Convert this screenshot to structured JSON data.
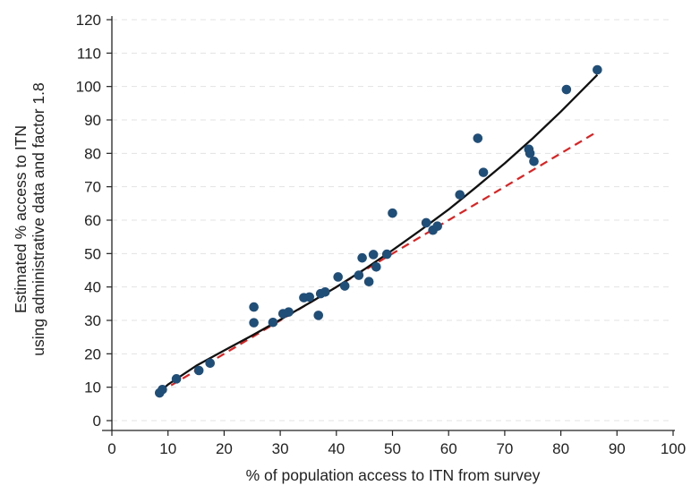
{
  "chart_data": {
    "type": "scatter",
    "title": "",
    "xlabel": "% of population access to ITN from survey",
    "ylabel_lines": [
      "Estimated % access to ITN",
      "using administrative data and factor 1.8"
    ],
    "xlim": [
      0,
      100
    ],
    "ylim": [
      0,
      120
    ],
    "xticks": [
      0,
      10,
      20,
      30,
      40,
      50,
      60,
      70,
      80,
      90,
      100
    ],
    "yticks": [
      0,
      10,
      20,
      30,
      40,
      50,
      60,
      70,
      80,
      90,
      100,
      110,
      120
    ],
    "grid": "horizontal dashed",
    "legend": "none",
    "colors": {
      "points": "#1f4e79",
      "fit_line": "#111111",
      "reference_line": "#e02020",
      "grid": "#e3e3e3",
      "axis": "#222222"
    },
    "points": [
      {
        "x": 8.5,
        "y": 8.3
      },
      {
        "x": 9.0,
        "y": 9.3
      },
      {
        "x": 11.5,
        "y": 12.5
      },
      {
        "x": 15.5,
        "y": 15.0
      },
      {
        "x": 17.5,
        "y": 17.2
      },
      {
        "x": 25.3,
        "y": 34.0
      },
      {
        "x": 25.3,
        "y": 29.3
      },
      {
        "x": 28.7,
        "y": 29.4
      },
      {
        "x": 30.5,
        "y": 32.0
      },
      {
        "x": 31.5,
        "y": 32.5
      },
      {
        "x": 34.2,
        "y": 36.8
      },
      {
        "x": 35.2,
        "y": 37.0
      },
      {
        "x": 36.8,
        "y": 31.5
      },
      {
        "x": 37.2,
        "y": 38.0
      },
      {
        "x": 38.0,
        "y": 38.5
      },
      {
        "x": 40.3,
        "y": 43.0
      },
      {
        "x": 41.5,
        "y": 40.3
      },
      {
        "x": 44.0,
        "y": 43.5
      },
      {
        "x": 44.6,
        "y": 48.7
      },
      {
        "x": 45.8,
        "y": 41.6
      },
      {
        "x": 46.6,
        "y": 49.7
      },
      {
        "x": 47.1,
        "y": 46.0
      },
      {
        "x": 49.0,
        "y": 49.8
      },
      {
        "x": 50.0,
        "y": 62.1
      },
      {
        "x": 56.0,
        "y": 59.2
      },
      {
        "x": 57.2,
        "y": 57.0
      },
      {
        "x": 58.0,
        "y": 58.2
      },
      {
        "x": 62.0,
        "y": 67.6
      },
      {
        "x": 65.2,
        "y": 84.5
      },
      {
        "x": 66.2,
        "y": 74.3
      },
      {
        "x": 74.3,
        "y": 81.2
      },
      {
        "x": 74.5,
        "y": 80.0
      },
      {
        "x": 75.2,
        "y": 77.6
      },
      {
        "x": 81.0,
        "y": 99.1
      },
      {
        "x": 86.5,
        "y": 105.0
      }
    ],
    "fit_curve": [
      [
        8.5,
        8.6
      ],
      [
        10,
        10.8
      ],
      [
        15,
        16.4
      ],
      [
        20,
        21.0
      ],
      [
        25,
        25.5
      ],
      [
        30,
        30.2
      ],
      [
        35,
        35.0
      ],
      [
        40,
        40.0
      ],
      [
        45,
        45.3
      ],
      [
        50,
        51.0
      ],
      [
        55,
        57.0
      ],
      [
        60,
        63.2
      ],
      [
        65,
        70.0
      ],
      [
        70,
        77.0
      ],
      [
        75,
        84.5
      ],
      [
        80,
        92.5
      ],
      [
        86.5,
        103.5
      ]
    ],
    "reference_line": [
      [
        8.5,
        8.5
      ],
      [
        86.5,
        86.5
      ]
    ]
  }
}
